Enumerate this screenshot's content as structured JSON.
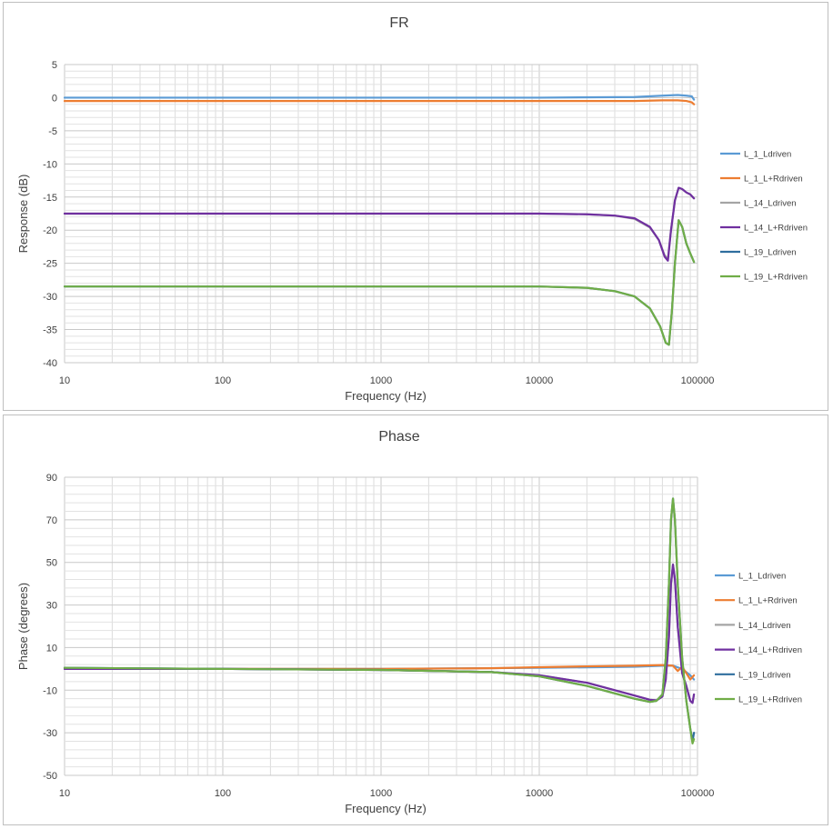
{
  "chart_data": [
    {
      "id": "fr",
      "type": "line",
      "title": "FR",
      "xlabel": "Frequency (Hz)",
      "ylabel": "Response (dB)",
      "x_scale": "log",
      "xlim": [
        10,
        100000
      ],
      "ylim": [
        -40,
        5
      ],
      "yticks": [
        5,
        0,
        -5,
        -10,
        -15,
        -20,
        -25,
        -30,
        -35,
        -40
      ],
      "xticks": [
        10,
        100,
        1000,
        10000,
        100000
      ],
      "xtick_labels": [
        "10",
        "100",
        "1000",
        "10000",
        "100000"
      ],
      "grid": true,
      "legend_position": "right",
      "series": [
        {
          "name": "L_1_Ldriven",
          "color": "#5B9BD5",
          "x": [
            10,
            100,
            1000,
            10000,
            40000,
            60000,
            75000,
            85000,
            92000,
            95000
          ],
          "y": [
            0.0,
            0.0,
            0.0,
            0.0,
            0.1,
            0.3,
            0.4,
            0.3,
            0.2,
            -0.3
          ]
        },
        {
          "name": "L_1_L+Rdriven",
          "color": "#ED7D31",
          "x": [
            10,
            100,
            1000,
            10000,
            40000,
            60000,
            75000,
            85000,
            92000,
            95000
          ],
          "y": [
            -0.5,
            -0.5,
            -0.5,
            -0.5,
            -0.5,
            -0.4,
            -0.4,
            -0.5,
            -0.7,
            -1.0
          ]
        },
        {
          "name": "L_14_Ldriven",
          "color": "#A5A5A5",
          "x": [
            10,
            100,
            1000,
            10000,
            20000,
            30000,
            40000,
            50000,
            57000,
            62000,
            65000,
            68000,
            72000,
            76000,
            80000,
            85000,
            90000,
            95000
          ],
          "y": [
            -17.5,
            -17.5,
            -17.5,
            -17.5,
            -17.6,
            -17.8,
            -18.3,
            -19.6,
            -21.5,
            -23.8,
            -24.3,
            -20.0,
            -15.5,
            -13.6,
            -13.8,
            -14.3,
            -14.6,
            -15.2
          ]
        },
        {
          "name": "L_14_L+Rdriven",
          "color": "#7030A0",
          "x": [
            10,
            100,
            1000,
            10000,
            20000,
            30000,
            40000,
            50000,
            57000,
            62000,
            65000,
            68000,
            72000,
            76000,
            80000,
            85000,
            90000,
            95000
          ],
          "y": [
            -17.5,
            -17.5,
            -17.5,
            -17.5,
            -17.6,
            -17.8,
            -18.2,
            -19.5,
            -21.5,
            -24.0,
            -24.6,
            -20.0,
            -15.5,
            -13.6,
            -13.8,
            -14.3,
            -14.6,
            -15.2
          ]
        },
        {
          "name": "L_19_Ldriven",
          "color": "#2F6E9E",
          "x": [
            10,
            100,
            1000,
            10000,
            20000,
            30000,
            40000,
            50000,
            58000,
            63000,
            66000,
            69000,
            72000,
            76000,
            80000,
            85000,
            90000,
            95000
          ],
          "y": [
            -28.5,
            -28.5,
            -28.5,
            -28.5,
            -28.7,
            -29.2,
            -30.0,
            -31.8,
            -34.5,
            -37.0,
            -37.3,
            -32.0,
            -25.0,
            -18.5,
            -19.5,
            -22.0,
            -23.5,
            -24.8
          ]
        },
        {
          "name": "L_19_L+Rdriven",
          "color": "#70AD47",
          "x": [
            10,
            100,
            1000,
            10000,
            20000,
            30000,
            40000,
            50000,
            58000,
            63000,
            66000,
            69000,
            72000,
            76000,
            80000,
            85000,
            90000,
            95000
          ],
          "y": [
            -28.5,
            -28.5,
            -28.5,
            -28.5,
            -28.7,
            -29.2,
            -30.0,
            -31.8,
            -34.5,
            -37.0,
            -37.3,
            -32.0,
            -25.0,
            -18.5,
            -19.5,
            -22.0,
            -23.5,
            -24.8
          ]
        }
      ]
    },
    {
      "id": "phase",
      "type": "line",
      "title": "Phase",
      "xlabel": "Frequency (Hz)",
      "ylabel": "Phase (degrees)",
      "x_scale": "log",
      "xlim": [
        10,
        100000
      ],
      "ylim": [
        -50,
        90
      ],
      "yticks": [
        90,
        70,
        50,
        30,
        10,
        -10,
        -30,
        -50
      ],
      "xticks": [
        10,
        100,
        1000,
        10000,
        100000
      ],
      "xtick_labels": [
        "10",
        "100",
        "1000",
        "10000",
        "100000"
      ],
      "grid": true,
      "legend_position": "right",
      "series": [
        {
          "name": "L_1_Ldriven",
          "color": "#5B9BD5",
          "x": [
            10,
            100,
            1000,
            10000,
            40000,
            60000,
            70000,
            80000,
            90000,
            95000
          ],
          "y": [
            0.5,
            0.0,
            0.0,
            0.5,
            1.0,
            1.5,
            1.5,
            0.0,
            -3.0,
            -5.0
          ]
        },
        {
          "name": "L_1_L+Rdriven",
          "color": "#ED7D31",
          "x": [
            10,
            100,
            1000,
            5000,
            10000,
            20000,
            40000,
            60000,
            70000,
            75000,
            80000,
            85000,
            90000,
            95000
          ],
          "y": [
            0.0,
            0.0,
            0.0,
            0.3,
            0.8,
            1.2,
            1.5,
            1.8,
            1.5,
            -1.0,
            1.0,
            -2.0,
            -5.0,
            -3.0
          ]
        },
        {
          "name": "L_14_Ldriven",
          "color": "#A5A5A5",
          "x": [
            10,
            100,
            1000,
            5000,
            10000,
            20000,
            30000,
            40000,
            50000,
            55000,
            60000,
            63000,
            66000,
            68000,
            70000,
            72000,
            75000,
            80000,
            85000,
            90000,
            93000,
            95000
          ],
          "y": [
            0.0,
            0.0,
            -0.5,
            -1.5,
            -3.0,
            -6.5,
            -10.0,
            -12.5,
            -14.5,
            -14.8,
            -13.0,
            -5.0,
            15.0,
            40.0,
            49.0,
            42.0,
            20.0,
            -2.0,
            -8.0,
            -15.0,
            -16.0,
            -12.0
          ]
        },
        {
          "name": "L_14_L+Rdriven",
          "color": "#7030A0",
          "x": [
            10,
            100,
            1000,
            5000,
            10000,
            20000,
            30000,
            40000,
            50000,
            55000,
            60000,
            63000,
            66000,
            68000,
            70000,
            72000,
            75000,
            80000,
            85000,
            90000,
            93000,
            95000
          ],
          "y": [
            0.0,
            0.0,
            -0.5,
            -1.5,
            -3.0,
            -6.5,
            -10.0,
            -12.5,
            -14.5,
            -14.8,
            -13.0,
            -5.0,
            15.0,
            40.0,
            49.0,
            42.0,
            20.0,
            -2.0,
            -8.0,
            -15.0,
            -16.0,
            -12.0
          ]
        },
        {
          "name": "L_19_Ldriven",
          "color": "#2F6E9E",
          "x": [
            10,
            100,
            1000,
            5000,
            10000,
            20000,
            30000,
            40000,
            50000,
            55000,
            60000,
            63000,
            66000,
            68000,
            70000,
            72000,
            75000,
            80000,
            85000,
            90000,
            93000,
            95000
          ],
          "y": [
            0.5,
            0.0,
            -0.5,
            -1.5,
            -3.5,
            -8.0,
            -11.5,
            -14.0,
            -15.5,
            -15.0,
            -12.0,
            5.0,
            40.0,
            70.0,
            80.0,
            70.0,
            40.0,
            5.0,
            -15.0,
            -28.0,
            -34.0,
            -30.0
          ]
        },
        {
          "name": "L_19_L+Rdriven",
          "color": "#70AD47",
          "x": [
            10,
            100,
            1000,
            5000,
            10000,
            20000,
            30000,
            40000,
            50000,
            55000,
            60000,
            63000,
            66000,
            68000,
            70000,
            72000,
            75000,
            80000,
            85000,
            90000,
            93000,
            95000
          ],
          "y": [
            0.5,
            0.0,
            -0.5,
            -1.5,
            -3.5,
            -8.0,
            -11.5,
            -14.0,
            -15.5,
            -15.0,
            -12.0,
            5.0,
            40.0,
            70.0,
            80.0,
            70.0,
            40.0,
            5.0,
            -15.0,
            -28.0,
            -35.0,
            -33.0
          ]
        }
      ]
    }
  ]
}
